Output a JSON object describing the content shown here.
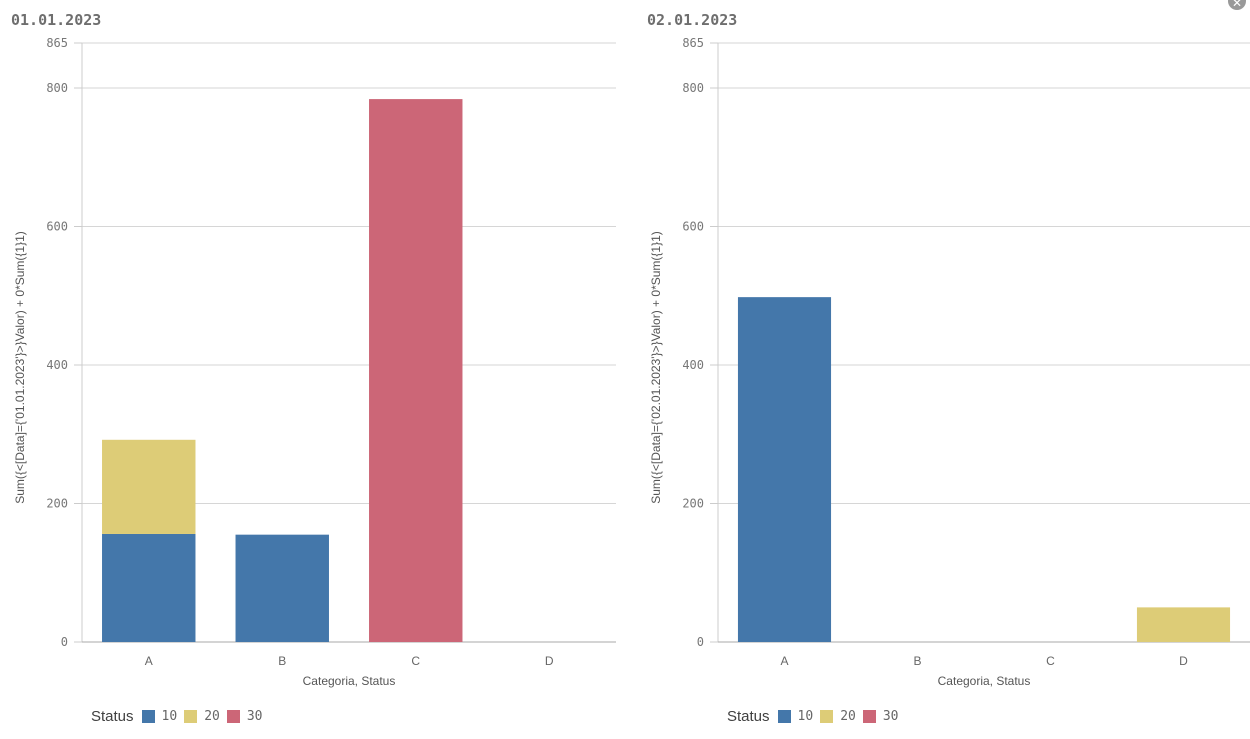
{
  "colors": {
    "10": "#4477aa",
    "20": "#ddcc77",
    "30": "#cc6677"
  },
  "close_icon": "close-circle-icon",
  "chart_data": [
    {
      "type": "bar",
      "stacked": true,
      "title": "01.01.2023",
      "xlabel": "Categoria, Status",
      "ylabel": "Sum({<[Data]={'01.01.2023'}>}Valor) + 0*Sum({1}1)",
      "ylim": [
        0,
        865
      ],
      "yticks": [
        0,
        200,
        400,
        600,
        800,
        865
      ],
      "grid": true,
      "legend_placement": "bottom-left",
      "legend_title": "Status",
      "categories": [
        "A",
        "B",
        "C",
        "D"
      ],
      "series": [
        {
          "name": "10",
          "values": [
            156,
            155,
            0,
            0
          ]
        },
        {
          "name": "20",
          "values": [
            136,
            0,
            0,
            0
          ]
        },
        {
          "name": "30",
          "values": [
            0,
            0,
            784,
            0
          ]
        }
      ]
    },
    {
      "type": "bar",
      "stacked": true,
      "title": "02.01.2023",
      "xlabel": "Categoria, Status",
      "ylabel": "Sum({<[Data]={'02.01.2023'}>}Valor) + 0*Sum({1}1)",
      "ylim": [
        0,
        865
      ],
      "yticks": [
        0,
        200,
        400,
        600,
        800,
        865
      ],
      "grid": true,
      "legend_placement": "bottom-left",
      "legend_title": "Status",
      "categories": [
        "A",
        "B",
        "C",
        "D"
      ],
      "series": [
        {
          "name": "10",
          "values": [
            498,
            0,
            0,
            0
          ]
        },
        {
          "name": "20",
          "values": [
            0,
            0,
            0,
            50
          ]
        },
        {
          "name": "30",
          "values": [
            0,
            0,
            0,
            0
          ]
        }
      ]
    }
  ]
}
